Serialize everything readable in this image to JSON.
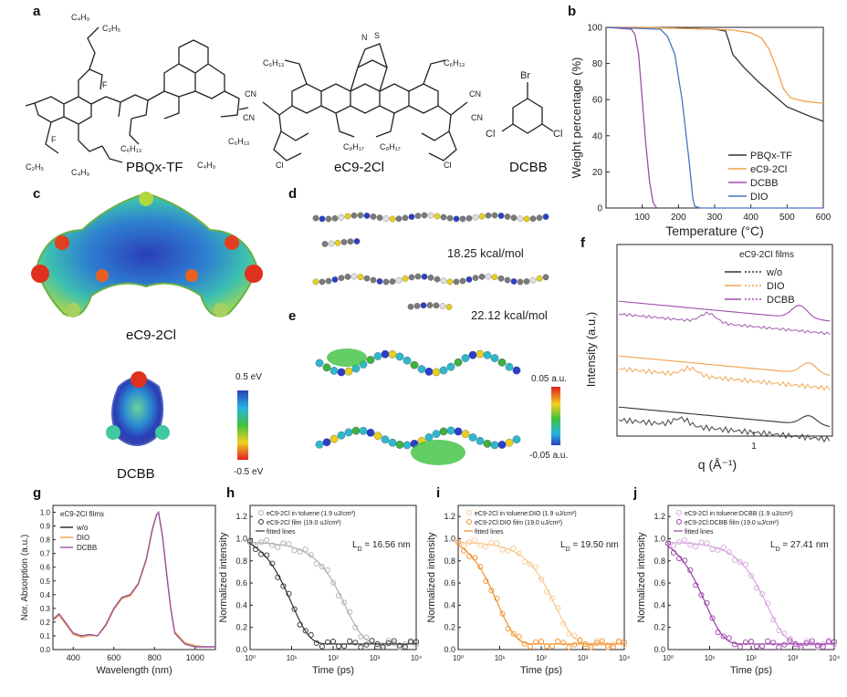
{
  "panel_labels": [
    "a",
    "b",
    "c",
    "d",
    "e",
    "f",
    "g",
    "h",
    "i",
    "j"
  ],
  "molecules": {
    "polymer": "PBQx-TF",
    "acceptor": "eC9-2Cl",
    "additive": "DCBB",
    "substituents": {
      "c4h9": "C₄H₉",
      "c2h5": "C₂H₅",
      "c6h13": "C₆H₁₃",
      "c8h17": "C₈H₁₇",
      "cn": "CN",
      "f": "F",
      "cl": "Cl",
      "br": "Br",
      "s": "S",
      "n": "N",
      "o": "O"
    }
  },
  "panel_c": {
    "label_top": "eC9-2Cl",
    "label_bottom": "DCBB",
    "scale_max": "0.5 eV",
    "scale_min": "-0.5 eV"
  },
  "panel_d": {
    "energy1": "18.25 kcal/mol",
    "energy2": "22.12 kcal/mol"
  },
  "panel_e": {
    "scale_max": "0.05 a.u.",
    "scale_min": "-0.05 a.u."
  },
  "chart_data": [
    {
      "id": "b",
      "type": "line",
      "xlabel": "Temperature (°C)",
      "ylabel": "Weight percentage (%)",
      "xlim": [
        0,
        600
      ],
      "ylim": [
        0,
        100
      ],
      "xticks": [
        "100",
        "200",
        "300",
        "400",
        "500",
        "600"
      ],
      "yticks": [
        "0",
        "20",
        "40",
        "60",
        "80",
        "100"
      ],
      "legend_placement": "bottom-right",
      "series": [
        {
          "name": "PBQx-TF",
          "color": "#333333",
          "x": [
            0,
            100,
            200,
            300,
            330,
            340,
            350,
            380,
            420,
            460,
            500,
            560,
            600
          ],
          "y": [
            100,
            100,
            99.5,
            99,
            98,
            92,
            85,
            78,
            70,
            63,
            56,
            51,
            48
          ]
        },
        {
          "name": "eC9-2Cl",
          "color": "#f0a04b",
          "x": [
            0,
            100,
            200,
            300,
            350,
            400,
            430,
            450,
            470,
            490,
            510,
            550,
            600
          ],
          "y": [
            100,
            100,
            99.5,
            99,
            98.5,
            97,
            94,
            88,
            78,
            66,
            61,
            59,
            58
          ]
        },
        {
          "name": "DCBB",
          "color": "#9b4fa8",
          "x": [
            0,
            70,
            80,
            90,
            100,
            110,
            120,
            130,
            140
          ],
          "y": [
            100,
            99,
            96,
            85,
            60,
            35,
            15,
            3,
            0
          ]
        },
        {
          "name": "DIO",
          "color": "#4a74c4",
          "x": [
            0,
            150,
            170,
            190,
            210,
            230,
            240,
            245,
            260,
            600
          ],
          "y": [
            100,
            99,
            95,
            85,
            60,
            25,
            5,
            1,
            0,
            0
          ]
        }
      ]
    },
    {
      "id": "f",
      "type": "line",
      "xlabel": "q (Å⁻¹)",
      "ylabel": "Intensity (a.u.)",
      "xticks": [
        "1"
      ],
      "legend_title": "eC9-2Cl films",
      "legend_placement": "top-right",
      "series": [
        {
          "name": "w/o",
          "color": "#333333"
        },
        {
          "name": "DIO",
          "color": "#f0a04b"
        },
        {
          "name": "DCBB",
          "color": "#9b4fa8"
        }
      ]
    },
    {
      "id": "g",
      "type": "line",
      "xlabel": "Wavelength (nm)",
      "ylabel": "Nor. Absorption (a.u.)",
      "xlim": [
        300,
        1100
      ],
      "ylim": [
        0,
        1.05
      ],
      "xticks": [
        "400",
        "600",
        "800",
        "1000"
      ],
      "yticks": [
        "0.0",
        "0.1",
        "0.2",
        "0.3",
        "0.4",
        "0.5",
        "0.6",
        "0.7",
        "0.8",
        "0.9",
        "1.0"
      ],
      "legend_title": "eC9-2Cl films",
      "legend_placement": "top-left",
      "series": [
        {
          "name": "w/o",
          "color": "#222222",
          "x": [
            300,
            330,
            360,
            400,
            440,
            480,
            520,
            560,
            600,
            640,
            680,
            720,
            760,
            790,
            810,
            820,
            840,
            860,
            880,
            900,
            950,
            1000,
            1050,
            1100
          ],
          "y": [
            0.22,
            0.26,
            0.2,
            0.12,
            0.1,
            0.11,
            0.1,
            0.18,
            0.3,
            0.38,
            0.4,
            0.48,
            0.66,
            0.88,
            0.98,
            1.0,
            0.82,
            0.55,
            0.3,
            0.12,
            0.04,
            0.02,
            0.02,
            0.02
          ]
        },
        {
          "name": "DIO",
          "color": "#f0a04b",
          "x": [
            300,
            330,
            360,
            400,
            440,
            480,
            520,
            560,
            600,
            640,
            680,
            720,
            760,
            790,
            810,
            820,
            840,
            860,
            880,
            900,
            950,
            1000,
            1050,
            1100
          ],
          "y": [
            0.21,
            0.25,
            0.19,
            0.11,
            0.09,
            0.1,
            0.1,
            0.17,
            0.29,
            0.37,
            0.39,
            0.47,
            0.65,
            0.87,
            0.98,
            1.0,
            0.83,
            0.56,
            0.31,
            0.13,
            0.05,
            0.03,
            0.02,
            0.02
          ]
        },
        {
          "name": "DCBB",
          "color": "#9b4fa8",
          "x": [
            300,
            330,
            360,
            400,
            440,
            480,
            520,
            560,
            600,
            640,
            680,
            720,
            760,
            790,
            810,
            820,
            840,
            860,
            880,
            900,
            950,
            1000,
            1050,
            1100
          ],
          "y": [
            0.22,
            0.26,
            0.2,
            0.12,
            0.1,
            0.11,
            0.1,
            0.18,
            0.3,
            0.38,
            0.4,
            0.48,
            0.66,
            0.88,
            0.98,
            1.0,
            0.82,
            0.55,
            0.3,
            0.12,
            0.04,
            0.02,
            0.02,
            0.02
          ]
        }
      ]
    },
    {
      "id": "h",
      "type": "scatter",
      "xlabel": "Time (ps)",
      "ylabel": "Normalized intensity",
      "xscale": "log",
      "xlim_exp": [
        0,
        4
      ],
      "ylim": [
        0,
        1.3
      ],
      "xticks": [
        "10⁰",
        "10¹",
        "10²",
        "10³",
        "10⁴"
      ],
      "yticks": [
        "0.0",
        "0.2",
        "0.4",
        "0.6",
        "0.8",
        "1.0",
        "1.2"
      ],
      "annotation": "L_D = 16.56 nm",
      "legend": [
        "eC9-2Cl in toluene (1.9 uJ/cm²)",
        "eC9-2Cl film (19.0 uJ/cm²)",
        "fitted lines"
      ],
      "series": [
        {
          "name": "solution",
          "color": "#b0b0b0",
          "tau_exp": 2.3
        },
        {
          "name": "film",
          "color": "#333333",
          "tau_exp": 1.0
        }
      ]
    },
    {
      "id": "i",
      "type": "scatter",
      "xlabel": "Time (ps)",
      "ylabel": "Normalized intensity",
      "xscale": "log",
      "xlim_exp": [
        0,
        4
      ],
      "ylim": [
        0,
        1.3
      ],
      "xticks": [
        "10⁰",
        "10¹",
        "10²",
        "10³",
        "10⁴"
      ],
      "yticks": [
        "0.0",
        "0.2",
        "0.4",
        "0.6",
        "0.8",
        "1.0",
        "1.2"
      ],
      "annotation": "L_D = 19.50 nm",
      "legend": [
        "eC9-2Cl in toluene:DIO (1.9 uJ/cm²)",
        "eC9-2Cl:DIO film (19.0 uJ/cm²)",
        "fitted lines"
      ],
      "series": [
        {
          "name": "solution",
          "color": "#f8c890",
          "tau_exp": 2.35
        },
        {
          "name": "film",
          "color": "#f0902a",
          "tau_exp": 0.95
        }
      ]
    },
    {
      "id": "j",
      "type": "scatter",
      "xlabel": "Time (ps)",
      "ylabel": "Normalized intensity",
      "xscale": "log",
      "xlim_exp": [
        0,
        4
      ],
      "ylim": [
        0,
        1.3
      ],
      "xticks": [
        "10⁰",
        "10¹",
        "10²",
        "10³",
        "10⁴"
      ],
      "yticks": [
        "0.0",
        "0.2",
        "0.4",
        "0.6",
        "0.8",
        "1.0",
        "1.2"
      ],
      "annotation": "L_D = 27.41 nm",
      "legend": [
        "eC9-2Cl in toluene:DCBB (1.9 uJ/cm²)",
        "eC9-2Cl:DCBB film (19.0 uJ/cm²)",
        "fitted lines"
      ],
      "series": [
        {
          "name": "solution",
          "color": "#d6a6dc",
          "tau_exp": 2.4
        },
        {
          "name": "film",
          "color": "#9b3fa8",
          "tau_exp": 0.9
        }
      ]
    }
  ]
}
